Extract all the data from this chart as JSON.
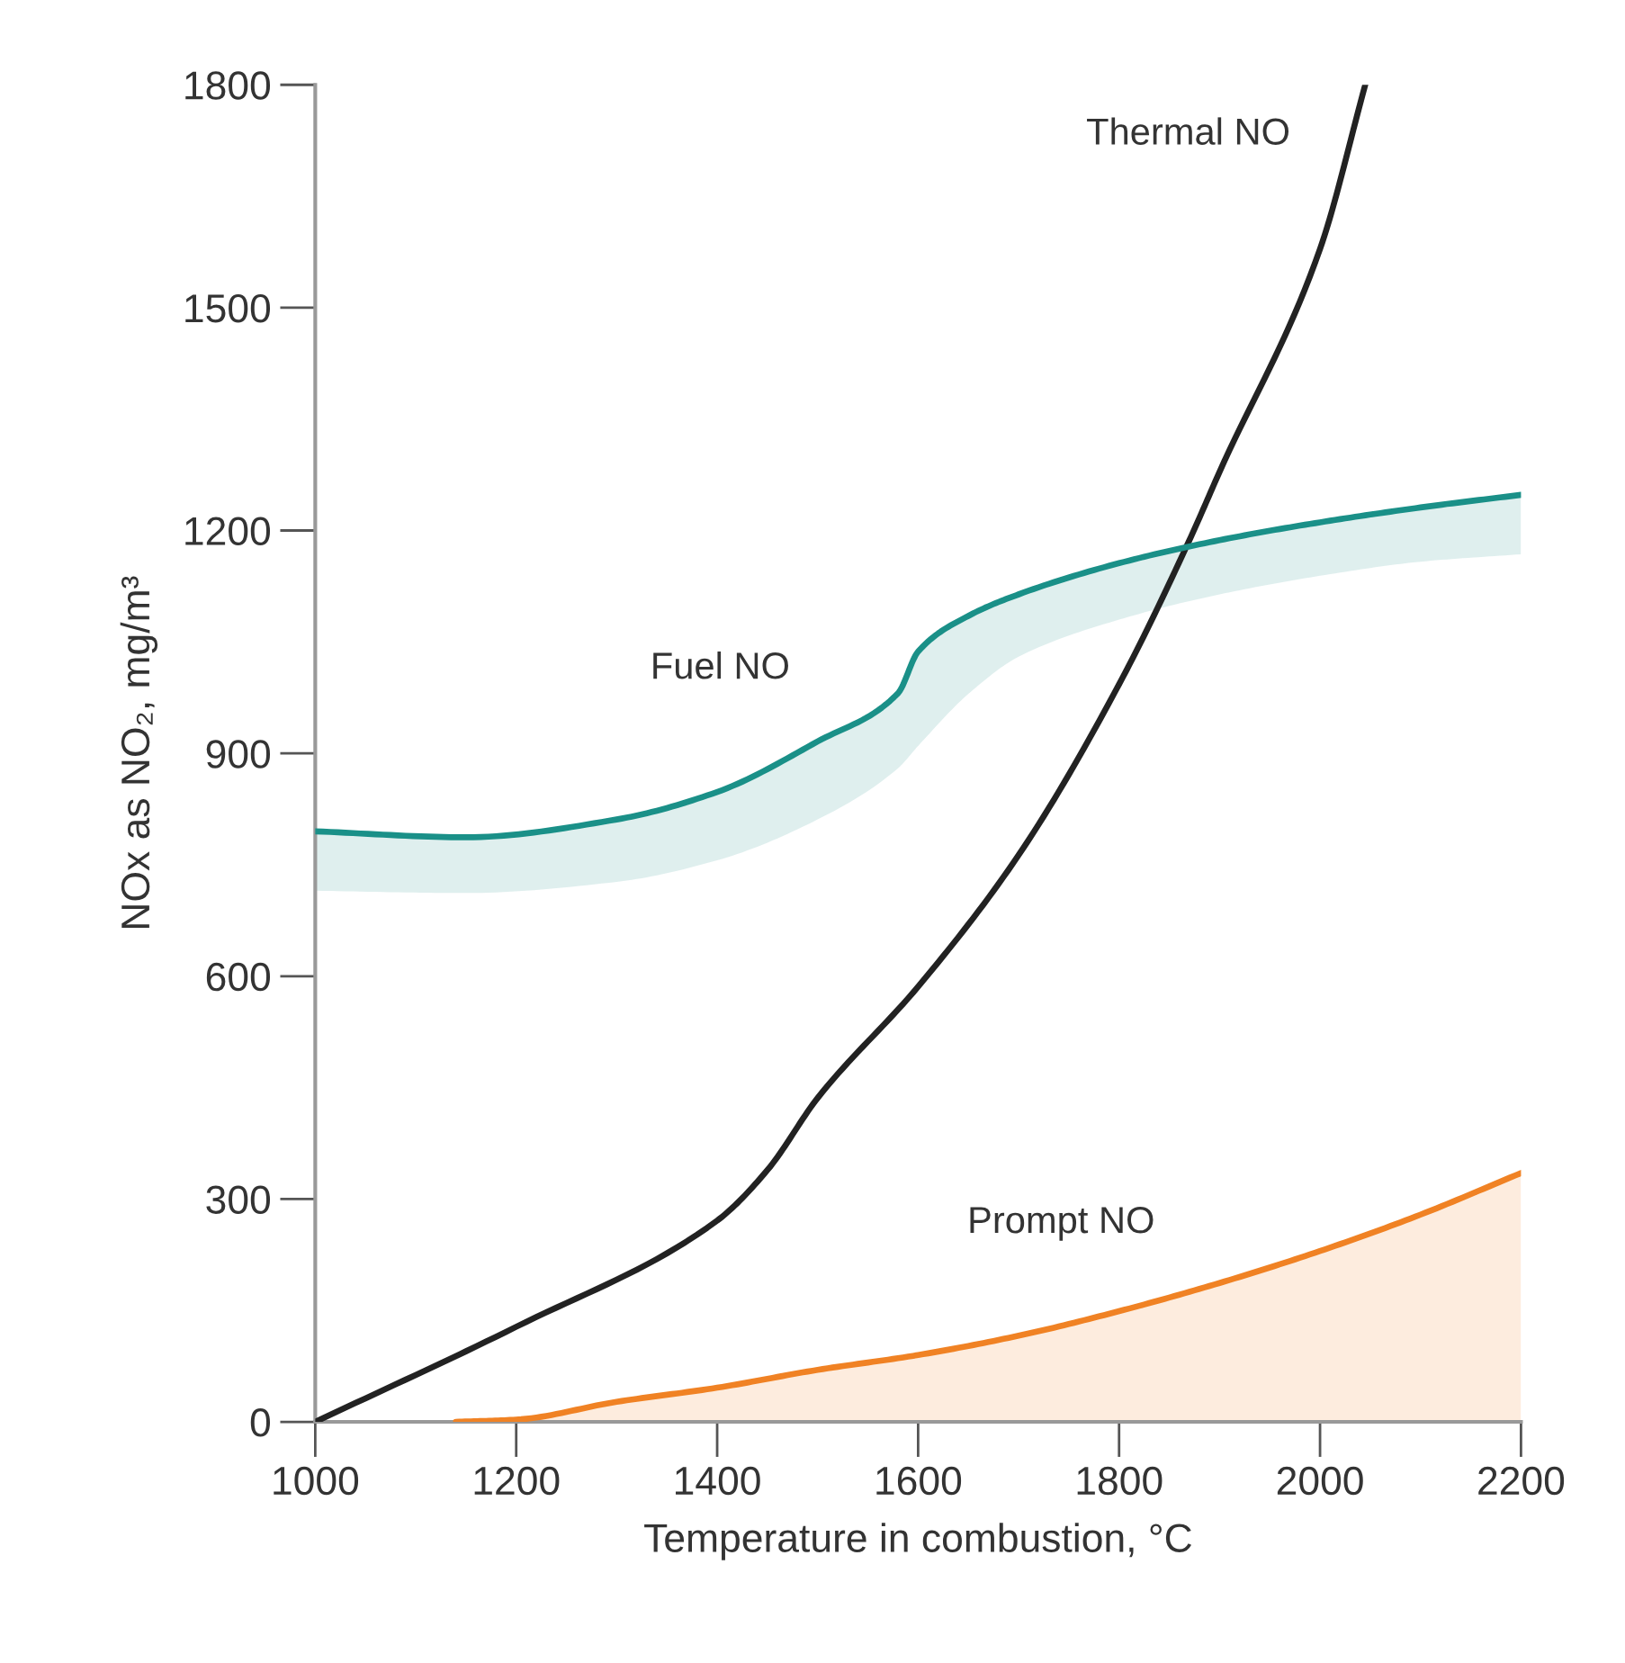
{
  "chart_data": {
    "type": "line",
    "xlabel": "Temperature in combustion, °C",
    "ylabel": "NOx as NO₂, mg/m³",
    "xlim": [
      1000,
      2200
    ],
    "ylim": [
      0,
      1800
    ],
    "xticks": [
      1000,
      1200,
      1400,
      1600,
      1800,
      2000,
      2200
    ],
    "yticks": [
      0,
      300,
      600,
      900,
      1200,
      1500,
      1800
    ],
    "grid": false,
    "legend": false,
    "marker": "none",
    "line_style": "solid",
    "series": [
      {
        "name": "Thermal NO",
        "color": "#222222",
        "x": [
          1000,
          1200,
          1400,
          1450,
          1500,
          1600,
          1700,
          1800,
          1870,
          1900,
          2000,
          2045
        ],
        "values": [
          0,
          128,
          271,
          339,
          436,
          586,
          763,
          993,
          1187,
          1279,
          1579,
          1800
        ]
      },
      {
        "name": "Fuel NO",
        "color": "#1a9088",
        "x": [
          1000,
          1150,
          1300,
          1400,
          1500,
          1580,
          1600,
          1650,
          1700,
          1800,
          1900,
          2000,
          2100,
          2200
        ],
        "values": [
          795,
          787,
          811,
          848,
          916,
          981,
          1037,
          1085,
          1114,
          1156,
          1187,
          1211,
          1231,
          1248
        ],
        "lower": [
          715,
          712,
          727,
          756,
          811,
          880,
          910,
          980,
          1030,
          1080,
          1114,
          1139,
          1158,
          1168
        ],
        "upper": [
          795,
          787,
          811,
          848,
          916,
          981,
          1037,
          1085,
          1114,
          1156,
          1187,
          1211,
          1231,
          1248
        ]
      },
      {
        "type": "area",
        "name": "Prompt NO",
        "color": "#f08224",
        "x": [
          1140,
          1200,
          1300,
          1400,
          1500,
          1600,
          1700,
          1800,
          1900,
          2000,
          2100,
          2200
        ],
        "values": [
          0,
          3,
          27,
          46,
          70,
          90,
          116,
          149,
          187,
          230,
          279,
          335
        ]
      }
    ]
  }
}
